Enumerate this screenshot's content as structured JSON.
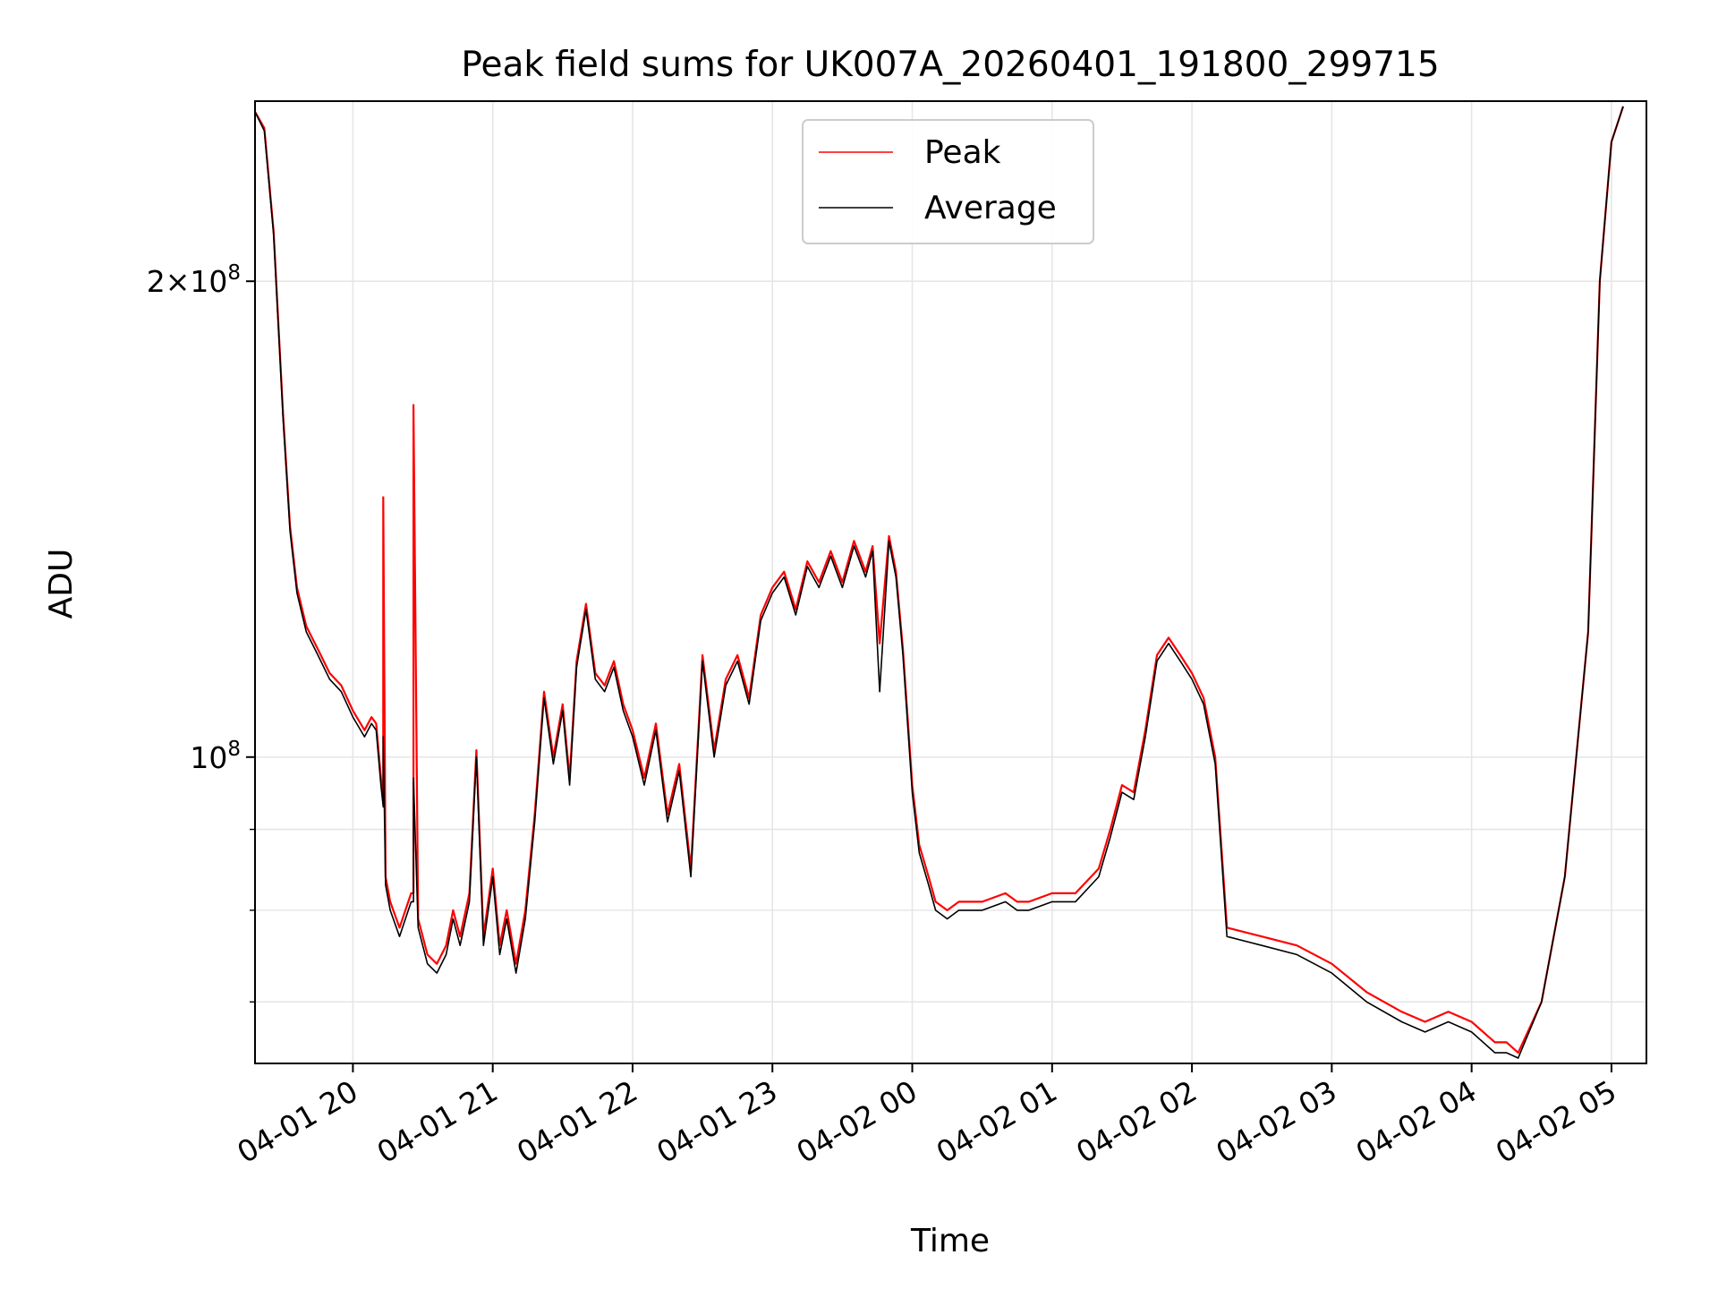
{
  "chart_data": {
    "type": "line",
    "title": "Peak field sums for UK007A_20260401_191800_299715",
    "xlabel": "Time",
    "ylabel": "ADU",
    "y_scale": "log",
    "ylim": [
      64000000,
      260000000
    ],
    "xlim": [
      "2026-04-01 19:18",
      "2026-04-02 05:15"
    ],
    "x_tick_labels": [
      "04-01 20",
      "04-01 21",
      "04-01 22",
      "04-01 23",
      "04-02 00",
      "04-02 01",
      "04-02 02",
      "04-02 03",
      "04-02 04",
      "04-02 05"
    ],
    "x_ticks": [
      "2026-04-01 20:00",
      "2026-04-01 21:00",
      "2026-04-01 22:00",
      "2026-04-01 23:00",
      "2026-04-02 00:00",
      "2026-04-02 01:00",
      "2026-04-02 02:00",
      "2026-04-02 03:00",
      "2026-04-02 04:00",
      "2026-04-02 05:00"
    ],
    "y_major_ticks": [
      100000000,
      200000000
    ],
    "y_major_tick_labels": [
      {
        "base": "10",
        "exp": "8",
        "coef": ""
      },
      {
        "base": "10",
        "exp": "8",
        "coef": "2×"
      }
    ],
    "y_minor_ticks": [
      70000000,
      80000000,
      90000000
    ],
    "grid": true,
    "legend": {
      "placement": "upper center"
    },
    "series": [
      {
        "name": "Peak",
        "color": "#ff0000",
        "x": [
          "2026-04-01 19:18",
          "2026-04-01 19:22",
          "2026-04-01 19:26",
          "2026-04-01 19:30",
          "2026-04-01 19:33",
          "2026-04-01 19:36",
          "2026-04-01 19:40",
          "2026-04-01 19:45",
          "2026-04-01 19:50",
          "2026-04-01 19:55",
          "2026-04-01 20:00",
          "2026-04-01 20:05",
          "2026-04-01 20:08",
          "2026-04-01 20:10",
          "2026-04-01 20:12",
          "2026-04-01 20:13",
          "2026-04-01 20:13",
          "2026-04-01 20:14",
          "2026-04-01 20:16",
          "2026-04-01 20:20",
          "2026-04-01 20:25",
          "2026-04-01 20:26",
          "2026-04-01 20:26",
          "2026-04-01 20:28",
          "2026-04-01 20:32",
          "2026-04-01 20:36",
          "2026-04-01 20:40",
          "2026-04-01 20:43",
          "2026-04-01 20:46",
          "2026-04-01 20:50",
          "2026-04-01 20:53",
          "2026-04-01 20:56",
          "2026-04-01 21:00",
          "2026-04-01 21:03",
          "2026-04-01 21:06",
          "2026-04-01 21:10",
          "2026-04-01 21:14",
          "2026-04-01 21:18",
          "2026-04-01 21:22",
          "2026-04-01 21:26",
          "2026-04-01 21:30",
          "2026-04-01 21:33",
          "2026-04-01 21:36",
          "2026-04-01 21:40",
          "2026-04-01 21:44",
          "2026-04-01 21:48",
          "2026-04-01 21:52",
          "2026-04-01 21:56",
          "2026-04-01 22:00",
          "2026-04-01 22:05",
          "2026-04-01 22:10",
          "2026-04-01 22:15",
          "2026-04-01 22:20",
          "2026-04-01 22:25",
          "2026-04-01 22:30",
          "2026-04-01 22:35",
          "2026-04-01 22:40",
          "2026-04-01 22:45",
          "2026-04-01 22:50",
          "2026-04-01 22:55",
          "2026-04-01 23:00",
          "2026-04-01 23:05",
          "2026-04-01 23:10",
          "2026-04-01 23:15",
          "2026-04-01 23:20",
          "2026-04-01 23:25",
          "2026-04-01 23:30",
          "2026-04-01 23:35",
          "2026-04-01 23:40",
          "2026-04-01 23:43",
          "2026-04-01 23:46",
          "2026-04-01 23:50",
          "2026-04-01 23:53",
          "2026-04-01 23:56",
          "2026-04-02 00:00",
          "2026-04-02 00:03",
          "2026-04-02 00:07",
          "2026-04-02 00:10",
          "2026-04-02 00:15",
          "2026-04-02 00:20",
          "2026-04-02 00:30",
          "2026-04-02 00:40",
          "2026-04-02 00:45",
          "2026-04-02 00:50",
          "2026-04-02 01:00",
          "2026-04-02 01:10",
          "2026-04-02 01:20",
          "2026-04-02 01:25",
          "2026-04-02 01:30",
          "2026-04-02 01:35",
          "2026-04-02 01:40",
          "2026-04-02 01:45",
          "2026-04-02 01:50",
          "2026-04-02 01:55",
          "2026-04-02 02:00",
          "2026-04-02 02:05",
          "2026-04-02 02:10",
          "2026-04-02 02:15",
          "2026-04-02 02:30",
          "2026-04-02 02:45",
          "2026-04-02 03:00",
          "2026-04-02 03:15",
          "2026-04-02 03:30",
          "2026-04-02 03:40",
          "2026-04-02 03:50",
          "2026-04-02 04:00",
          "2026-04-02 04:10",
          "2026-04-02 04:15",
          "2026-04-02 04:20",
          "2026-04-02 04:30",
          "2026-04-02 04:40",
          "2026-04-02 04:50",
          "2026-04-02 04:55",
          "2026-04-02 05:00",
          "2026-04-02 05:05"
        ],
        "y": [
          256000000,
          250000000,
          215000000,
          165000000,
          140000000,
          128000000,
          121000000,
          117000000,
          113000000,
          111000000,
          107000000,
          104000000,
          106000000,
          105000000,
          97000000,
          94000000,
          146000000,
          84000000,
          81000000,
          78000000,
          82000000,
          82000000,
          167000000,
          79000000,
          75000000,
          74000000,
          76000000,
          80000000,
          77000000,
          82000000,
          101000000,
          77000000,
          85000000,
          76000000,
          80000000,
          74000000,
          80000000,
          92000000,
          110000000,
          100000000,
          108000000,
          97000000,
          115000000,
          125000000,
          113000000,
          111000000,
          115000000,
          108000000,
          104000000,
          97000000,
          105000000,
          92000000,
          99000000,
          85000000,
          116000000,
          101000000,
          112000000,
          116000000,
          109000000,
          123000000,
          128000000,
          131000000,
          124000000,
          133000000,
          129000000,
          135000000,
          129000000,
          137000000,
          131000000,
          136000000,
          118000000,
          138000000,
          131000000,
          117000000,
          96000000,
          88000000,
          84000000,
          81000000,
          80000000,
          81000000,
          81000000,
          82000000,
          81000000,
          81000000,
          82000000,
          82000000,
          85000000,
          90000000,
          96000000,
          95000000,
          104000000,
          116000000,
          119000000,
          116000000,
          113000000,
          109000000,
          100000000,
          78000000,
          77000000,
          76000000,
          74000000,
          71000000,
          69000000,
          68000000,
          69000000,
          68000000,
          66000000,
          66000000,
          65000000,
          70000000,
          84000000,
          120000000,
          200000000,
          245000000,
          258000000
        ]
      },
      {
        "name": "Average",
        "color": "#000000",
        "x": [
          "2026-04-01 19:18",
          "2026-04-01 19:22",
          "2026-04-01 19:26",
          "2026-04-01 19:30",
          "2026-04-01 19:33",
          "2026-04-01 19:36",
          "2026-04-01 19:40",
          "2026-04-01 19:45",
          "2026-04-01 19:50",
          "2026-04-01 19:55",
          "2026-04-01 20:00",
          "2026-04-01 20:05",
          "2026-04-01 20:08",
          "2026-04-01 20:10",
          "2026-04-01 20:12",
          "2026-04-01 20:13",
          "2026-04-01 20:13",
          "2026-04-01 20:14",
          "2026-04-01 20:16",
          "2026-04-01 20:20",
          "2026-04-01 20:25",
          "2026-04-01 20:26",
          "2026-04-01 20:26",
          "2026-04-01 20:28",
          "2026-04-01 20:32",
          "2026-04-01 20:36",
          "2026-04-01 20:40",
          "2026-04-01 20:43",
          "2026-04-01 20:46",
          "2026-04-01 20:50",
          "2026-04-01 20:53",
          "2026-04-01 20:56",
          "2026-04-01 21:00",
          "2026-04-01 21:03",
          "2026-04-01 21:06",
          "2026-04-01 21:10",
          "2026-04-01 21:14",
          "2026-04-01 21:18",
          "2026-04-01 21:22",
          "2026-04-01 21:26",
          "2026-04-01 21:30",
          "2026-04-01 21:33",
          "2026-04-01 21:36",
          "2026-04-01 21:40",
          "2026-04-01 21:44",
          "2026-04-01 21:48",
          "2026-04-01 21:52",
          "2026-04-01 21:56",
          "2026-04-01 22:00",
          "2026-04-01 22:05",
          "2026-04-01 22:10",
          "2026-04-01 22:15",
          "2026-04-01 22:20",
          "2026-04-01 22:25",
          "2026-04-01 22:30",
          "2026-04-01 22:35",
          "2026-04-01 22:40",
          "2026-04-01 22:45",
          "2026-04-01 22:50",
          "2026-04-01 22:55",
          "2026-04-01 23:00",
          "2026-04-01 23:05",
          "2026-04-01 23:10",
          "2026-04-01 23:15",
          "2026-04-01 23:20",
          "2026-04-01 23:25",
          "2026-04-01 23:30",
          "2026-04-01 23:35",
          "2026-04-01 23:40",
          "2026-04-01 23:43",
          "2026-04-01 23:46",
          "2026-04-01 23:50",
          "2026-04-01 23:53",
          "2026-04-01 23:56",
          "2026-04-02 00:00",
          "2026-04-02 00:03",
          "2026-04-02 00:07",
          "2026-04-02 00:10",
          "2026-04-02 00:15",
          "2026-04-02 00:20",
          "2026-04-02 00:30",
          "2026-04-02 00:40",
          "2026-04-02 00:45",
          "2026-04-02 00:50",
          "2026-04-02 01:00",
          "2026-04-02 01:10",
          "2026-04-02 01:20",
          "2026-04-02 01:25",
          "2026-04-02 01:30",
          "2026-04-02 01:35",
          "2026-04-02 01:40",
          "2026-04-02 01:45",
          "2026-04-02 01:50",
          "2026-04-02 01:55",
          "2026-04-02 02:00",
          "2026-04-02 02:05",
          "2026-04-02 02:10",
          "2026-04-02 02:15",
          "2026-04-02 02:30",
          "2026-04-02 02:45",
          "2026-04-02 03:00",
          "2026-04-02 03:15",
          "2026-04-02 03:30",
          "2026-04-02 03:40",
          "2026-04-02 03:50",
          "2026-04-02 04:00",
          "2026-04-02 04:10",
          "2026-04-02 04:15",
          "2026-04-02 04:20",
          "2026-04-02 04:30",
          "2026-04-02 04:40",
          "2026-04-02 04:50",
          "2026-04-02 04:55",
          "2026-04-02 05:00",
          "2026-04-02 05:05"
        ],
        "y": [
          256000000,
          249000000,
          214000000,
          164000000,
          139000000,
          127000000,
          120000000,
          116000000,
          112000000,
          110000000,
          106000000,
          103000000,
          105000000,
          104000000,
          96000000,
          93000000,
          103000000,
          83000000,
          80000000,
          77000000,
          81000000,
          81000000,
          97000000,
          78000000,
          74000000,
          73000000,
          75000000,
          79000000,
          76000000,
          81000000,
          100000000,
          76000000,
          84000000,
          75000000,
          79000000,
          73000000,
          79000000,
          91000000,
          109000000,
          99000000,
          107000000,
          96000000,
          114000000,
          124000000,
          112000000,
          110000000,
          114000000,
          107000000,
          103000000,
          96000000,
          104000000,
          91000000,
          98000000,
          84000000,
          115000000,
          100000000,
          111000000,
          115000000,
          108000000,
          122000000,
          127000000,
          130000000,
          123000000,
          132000000,
          128000000,
          134000000,
          128000000,
          136000000,
          130000000,
          135000000,
          110000000,
          137000000,
          130000000,
          116000000,
          95000000,
          87000000,
          83000000,
          80000000,
          79000000,
          80000000,
          80000000,
          81000000,
          80000000,
          80000000,
          81000000,
          81000000,
          84000000,
          89000000,
          95000000,
          94000000,
          103000000,
          115000000,
          118000000,
          115000000,
          112000000,
          108000000,
          99000000,
          77000000,
          76000000,
          75000000,
          73000000,
          70000000,
          68000000,
          67000000,
          68000000,
          67000000,
          65000000,
          65000000,
          64500000,
          70000000,
          84000000,
          120000000,
          200000000,
          245000000,
          258000000
        ]
      }
    ]
  }
}
